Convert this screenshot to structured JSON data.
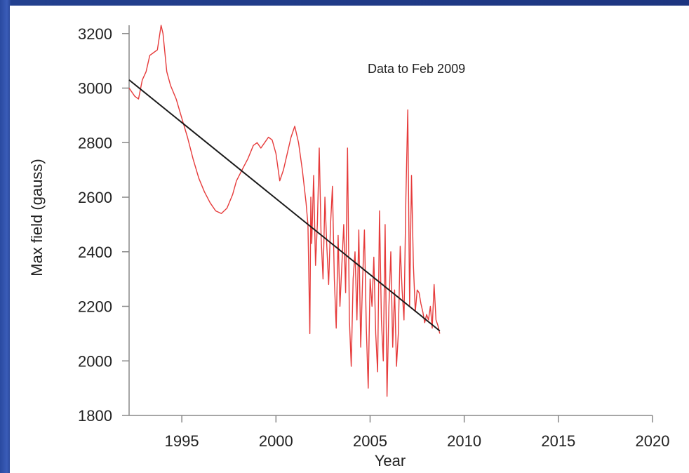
{
  "chart_data": {
    "type": "line",
    "title": "",
    "annotation": "Data to Feb 2009",
    "xlabel": "Year",
    "ylabel": "Max field (gauss)",
    "xlim": [
      1992.2,
      2020
    ],
    "ylim": [
      1800,
      3220
    ],
    "x_ticks": [
      1995,
      2000,
      2005,
      2010,
      2015,
      2020
    ],
    "y_ticks": [
      1800,
      2000,
      2200,
      2400,
      2600,
      2800,
      3000,
      3200
    ],
    "grid": false,
    "colors": {
      "data_series": "#e63b3b",
      "trend_line": "#1a1a1a",
      "axes": "#888888"
    },
    "series": [
      {
        "style": "data",
        "x": [
          1992.2,
          1992.5,
          1992.7,
          1992.9,
          1993.1,
          1993.3,
          1993.5,
          1993.7,
          1993.9,
          1994.0,
          1994.2,
          1994.4,
          1994.7,
          1995.0,
          1995.3,
          1995.6,
          1995.9,
          1996.2,
          1996.5,
          1996.8,
          1997.1,
          1997.4,
          1997.7,
          1997.9,
          1998.2,
          1998.5,
          1998.8,
          1999.0,
          1999.2,
          1999.4,
          1999.6,
          1999.8,
          2000.0,
          2000.2,
          2000.4,
          2000.6,
          2000.8,
          2001.0,
          2001.2,
          2001.4,
          2001.6,
          2001.7,
          2001.8,
          2001.85,
          2001.9,
          2002.0,
          2002.1,
          2002.2,
          2002.3,
          2002.4,
          2002.5,
          2002.6,
          2002.7,
          2002.8,
          2002.9,
          2003.0,
          2003.1,
          2003.2,
          2003.3,
          2003.4,
          2003.5,
          2003.6,
          2003.7,
          2003.8,
          2003.9,
          2004.0,
          2004.1,
          2004.2,
          2004.3,
          2004.4,
          2004.5,
          2004.6,
          2004.7,
          2004.8,
          2004.9,
          2005.0,
          2005.1,
          2005.2,
          2005.3,
          2005.4,
          2005.5,
          2005.6,
          2005.7,
          2005.8,
          2005.9,
          2006.0,
          2006.1,
          2006.2,
          2006.3,
          2006.4,
          2006.5,
          2006.6,
          2006.7,
          2006.8,
          2006.9,
          2007.0,
          2007.1,
          2007.2,
          2007.3,
          2007.4,
          2007.5,
          2007.6,
          2007.7,
          2007.8,
          2007.9,
          2008.0,
          2008.1,
          2008.2,
          2008.3,
          2008.4,
          2008.5,
          2008.6,
          2008.7
        ],
        "y": [
          3000,
          2970,
          2960,
          3030,
          3060,
          3120,
          3130,
          3140,
          3230,
          3200,
          3060,
          3010,
          2960,
          2890,
          2820,
          2740,
          2670,
          2620,
          2580,
          2550,
          2540,
          2560,
          2610,
          2660,
          2700,
          2740,
          2790,
          2800,
          2780,
          2800,
          2820,
          2810,
          2760,
          2660,
          2700,
          2760,
          2820,
          2860,
          2800,
          2700,
          2580,
          2500,
          2100,
          2600,
          2430,
          2680,
          2350,
          2500,
          2780,
          2450,
          2300,
          2600,
          2420,
          2280,
          2500,
          2640,
          2300,
          2120,
          2460,
          2200,
          2350,
          2500,
          2250,
          2780,
          2150,
          1980,
          2300,
          2400,
          2150,
          2480,
          2050,
          2290,
          2480,
          2120,
          1900,
          2300,
          2200,
          2380,
          2100,
          1960,
          2550,
          2150,
          2000,
          2500,
          1870,
          2200,
          2400,
          2050,
          2260,
          1980,
          2100,
          2420,
          2260,
          2150,
          2600,
          2920,
          2200,
          2680,
          2350,
          2180,
          2260,
          2250,
          2210,
          2180,
          2140,
          2170,
          2150,
          2200,
          2120,
          2280,
          2150,
          2130,
          2100
        ]
      },
      {
        "style": "trend",
        "x": [
          1992.2,
          2008.7
        ],
        "y": [
          3030,
          2110
        ]
      }
    ]
  }
}
